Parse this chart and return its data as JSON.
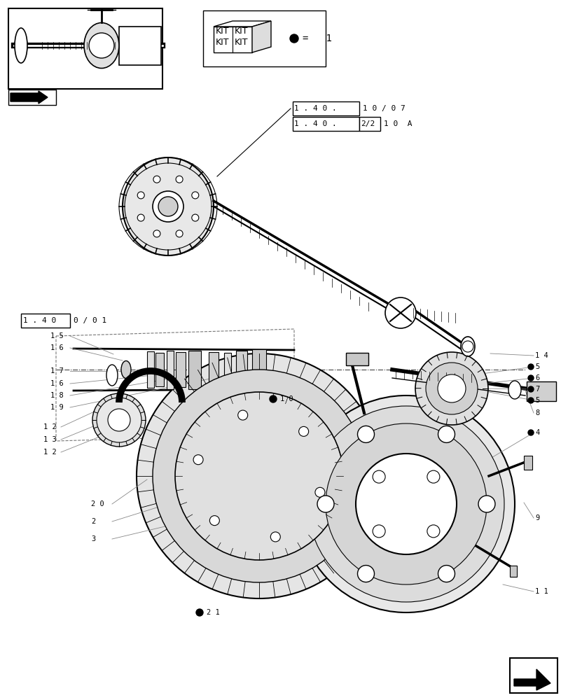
{
  "bg_color": "#ffffff",
  "line_color": "#000000",
  "ref_box1_inner": "1 . 4 0 .",
  "ref_box1_outer": "1 0 / 0 7",
  "ref_box2_inner": "1 . 4 0 .",
  "ref_box2_mid": "2/2",
  "ref_box2_outer": "1 0  A",
  "left_box_inner": "1 . 4 0",
  "left_box_outer": "0 / 0 1",
  "kit_eq": "=   1",
  "fs_label": 7.5,
  "fs_ref": 8,
  "fs_kit": 7
}
